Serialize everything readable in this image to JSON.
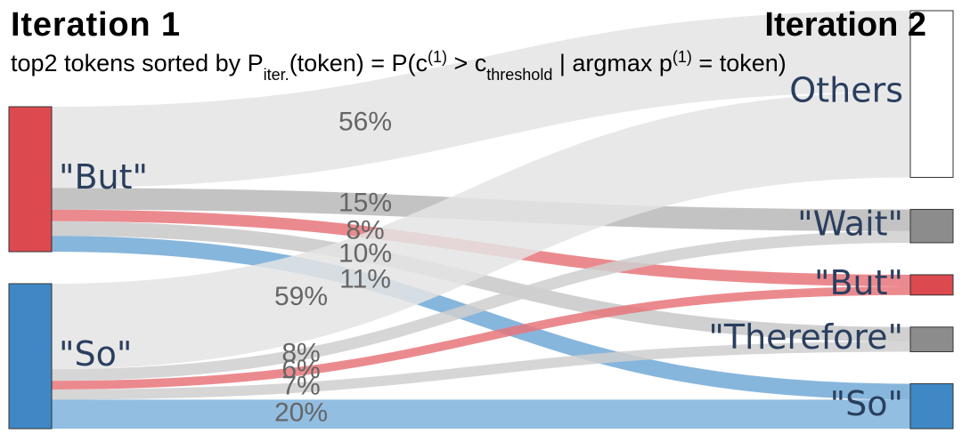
{
  "chart_data": {
    "type": "sankey",
    "title": "Iteration 1",
    "right_title": "Iteration 2",
    "subtitle_parts": [
      {
        "text": "top2 tokens sorted by P",
        "shift": "baseline"
      },
      {
        "text": "iter.",
        "shift": "sub"
      },
      {
        "text": "(token) = P(c",
        "shift": "baseline"
      },
      {
        "text": "(1)",
        "shift": "super"
      },
      {
        "text": " > c",
        "shift": "baseline"
      },
      {
        "text": "threshold",
        "shift": "sub"
      },
      {
        "text": " | argmax p",
        "shift": "baseline"
      },
      {
        "text": "(1)",
        "shift": "super"
      },
      {
        "text": " = token)",
        "shift": "baseline"
      }
    ],
    "right_nodes": [
      {
        "label": "Others",
        "color": "#ffffff"
      },
      {
        "label": "\"Wait\"",
        "color": "#8c8c8c"
      },
      {
        "label": "\"But\"",
        "color": "#dc4a4f"
      },
      {
        "label": "\"Therefore\"",
        "color": "#8c8c8c"
      },
      {
        "label": "\"So\"",
        "color": "#3f88c5"
      }
    ],
    "left_nodes": [
      {
        "label": "\"But\"",
        "color": "#dc4a4f",
        "links": [
          {
            "value": 56,
            "value_label": "56%",
            "color": "#e4e4e4"
          },
          {
            "value": 15,
            "value_label": "15%",
            "color": "#b8b8b8"
          },
          {
            "value": 8,
            "value_label": "8%",
            "color": "#e8757a"
          },
          {
            "value": 10,
            "value_label": "10%",
            "color": "#c8c8c8"
          },
          {
            "value": 11,
            "value_label": "11%",
            "color": "#72a9d6"
          }
        ]
      },
      {
        "label": "\"So\"",
        "color": "#3f88c5",
        "links": [
          {
            "value": 59,
            "value_label": "59%",
            "color": "#e4e4e4"
          },
          {
            "value": 8,
            "value_label": "8%",
            "color": "#cfcfcf"
          },
          {
            "value": 6,
            "value_label": "6%",
            "color": "#e8757a"
          },
          {
            "value": 7,
            "value_label": "7%",
            "color": "#cfcfcf"
          },
          {
            "value": 20,
            "value_label": "20%",
            "color": "#7fb3dd"
          }
        ]
      }
    ]
  }
}
